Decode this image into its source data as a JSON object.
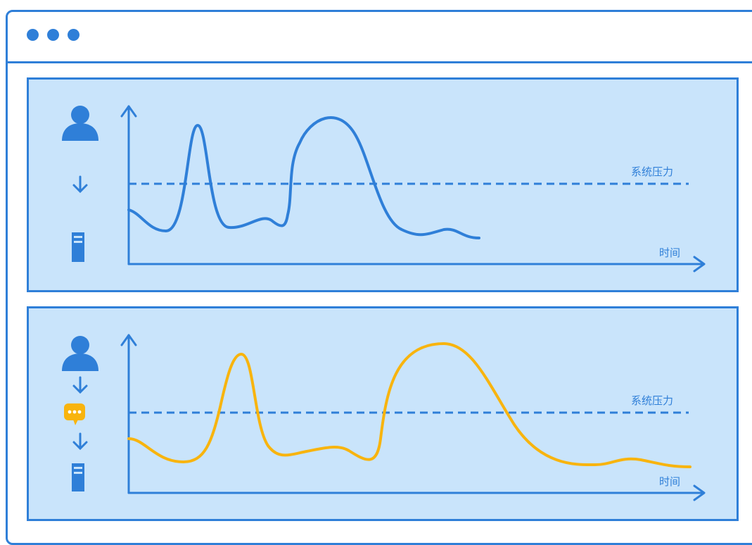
{
  "window": {
    "controls": [
      "dot-1",
      "dot-2",
      "dot-3"
    ]
  },
  "colors": {
    "accent": "#2f7fd8",
    "panel_bg": "#c9e4fb",
    "curve_direct": "#2f7fd8",
    "curve_queued": "#f8b40e",
    "message_icon": "#f8b40e"
  },
  "panels": [
    {
      "flow_icons": [
        "user-icon",
        "arrow-down-icon",
        "server-icon"
      ],
      "threshold_label": "系统压力",
      "x_axis_label": "时间"
    },
    {
      "flow_icons": [
        "user-icon",
        "arrow-down-icon",
        "message-queue-icon",
        "arrow-down-icon",
        "server-icon"
      ],
      "threshold_label": "系统压力",
      "x_axis_label": "时间"
    }
  ]
}
